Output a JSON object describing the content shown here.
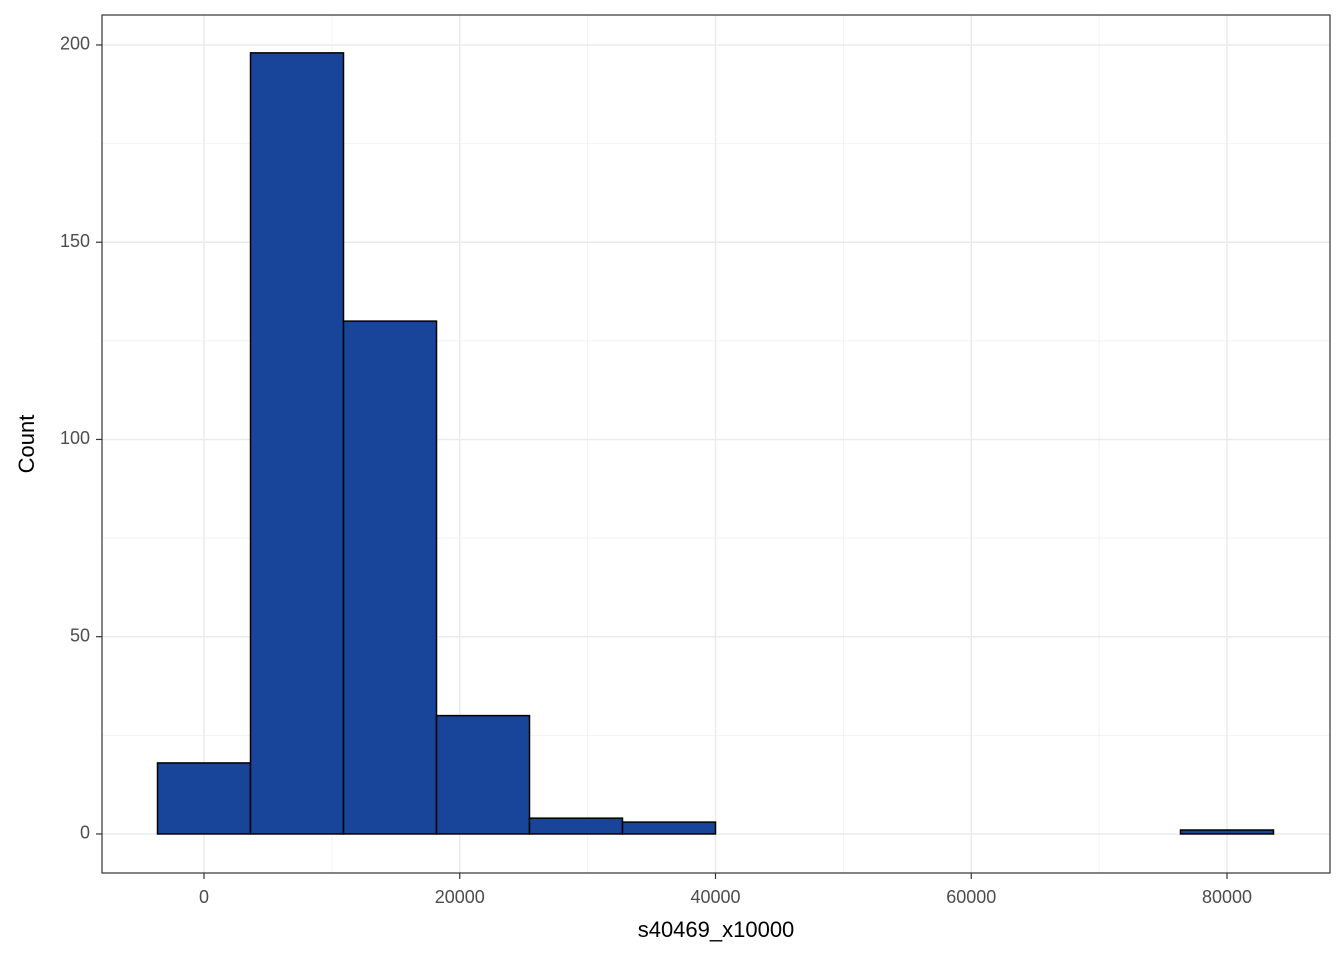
{
  "chart_data": {
    "type": "histogram",
    "x_label": "s40469_x10000",
    "y_label": "Count",
    "bins": [
      -3636.36,
      3636.36,
      10909.09,
      18181.82,
      25454.55,
      32727.27,
      40000,
      47272.73,
      54545.45,
      61818.18,
      69090.91,
      76363.64,
      83636.36
    ],
    "values": [
      18,
      198,
      130,
      30,
      4,
      3,
      0,
      0,
      0,
      0,
      0,
      1
    ],
    "color": "#18449a",
    "xlim": [
      -7977,
      88055
    ],
    "ylim": [
      -9.9,
      207.6
    ],
    "xticks": [
      0,
      20000,
      40000,
      60000,
      80000
    ],
    "yticks": [
      0,
      50,
      100,
      150,
      200
    ],
    "x_minor_ticks": [
      10000,
      30000,
      50000,
      70000
    ],
    "y_minor_ticks": [
      25,
      75,
      125,
      175
    ],
    "grid": true
  }
}
